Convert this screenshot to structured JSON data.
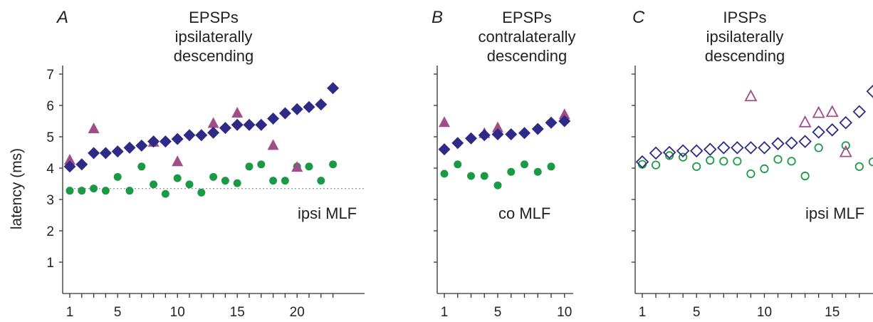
{
  "ylabel": "latency (ms)",
  "yticks": [
    "1",
    "2",
    "3",
    "4",
    "5",
    "6",
    "7"
  ],
  "colors": {
    "diamond": "#2e2a86",
    "circle": "#1a9a45",
    "triangle": "#a14d88",
    "reference_line": "#999999"
  },
  "panels": [
    {
      "letter": "A",
      "title": [
        "EPSPs",
        "ipsilaterally",
        "descending"
      ],
      "annotation": "ipsi MLF",
      "xticks": [
        "1",
        "5",
        "10",
        "15",
        "20"
      ]
    },
    {
      "letter": "B",
      "title": [
        "EPSPs",
        "contralaterally",
        "descending"
      ],
      "annotation": "co MLF",
      "xticks": [
        "1",
        "5",
        "10"
      ]
    },
    {
      "letter": "C",
      "title": [
        "IPSPs",
        "ipsilaterally",
        "descending"
      ],
      "annotation": "ipsi MLF",
      "xticks": [
        "1",
        "5",
        "10",
        "15"
      ]
    }
  ],
  "chart_data": [
    {
      "type": "scatter",
      "title": "EPSPs ipsilaterally descending",
      "ylabel": "latency (ms)",
      "ylim": [
        0,
        7
      ],
      "reference_line_y": 3.35,
      "series": [
        {
          "marker": "filled-diamond",
          "x": [
            1,
            2,
            3,
            4,
            5,
            6,
            7,
            8,
            9,
            10,
            11,
            12,
            13,
            14,
            15,
            16,
            17,
            18,
            19,
            20,
            21,
            22,
            23
          ],
          "y": [
            4.05,
            4.12,
            4.48,
            4.48,
            4.53,
            4.65,
            4.72,
            4.85,
            4.85,
            4.93,
            5.05,
            5.05,
            5.13,
            5.28,
            5.38,
            5.38,
            5.38,
            5.58,
            5.75,
            5.88,
            5.95,
            6.03,
            6.55
          ]
        },
        {
          "marker": "filled-circle",
          "x": [
            1,
            2,
            3,
            4,
            5,
            6,
            7,
            8,
            9,
            10,
            11,
            12,
            13,
            14,
            15,
            16,
            17,
            18,
            19,
            20,
            21,
            22,
            23
          ],
          "y": [
            3.28,
            3.28,
            3.35,
            3.28,
            3.72,
            3.28,
            4.05,
            3.48,
            3.18,
            3.68,
            3.48,
            3.22,
            3.72,
            3.6,
            3.52,
            4.05,
            4.12,
            3.6,
            3.6,
            4.05,
            4.05,
            3.6,
            4.12
          ]
        },
        {
          "marker": "filled-triangle",
          "x": [
            1,
            3,
            8,
            10,
            13,
            15,
            18,
            20
          ],
          "y": [
            4.25,
            5.25,
            4.82,
            4.2,
            5.42,
            5.75,
            4.72,
            4.02
          ]
        }
      ]
    },
    {
      "type": "scatter",
      "title": "EPSPs contralaterally descending",
      "ylim": [
        0,
        7
      ],
      "series": [
        {
          "marker": "filled-diamond",
          "x": [
            1,
            2,
            3,
            4,
            5,
            6,
            7,
            8,
            9,
            10
          ],
          "y": [
            4.6,
            4.8,
            4.95,
            5.05,
            5.08,
            5.08,
            5.12,
            5.25,
            5.45,
            5.5
          ]
        },
        {
          "marker": "filled-circle",
          "x": [
            1,
            2,
            3,
            4,
            5,
            6,
            7,
            8,
            9
          ],
          "y": [
            3.82,
            4.12,
            3.75,
            3.75,
            3.45,
            3.88,
            4.12,
            3.88,
            4.05
          ]
        },
        {
          "marker": "filled-triangle",
          "x": [
            1,
            4,
            5,
            10
          ],
          "y": [
            5.45,
            5.1,
            5.28,
            5.7
          ]
        }
      ]
    },
    {
      "type": "scatter",
      "title": "IPSPs ipsilaterally descending",
      "ylim": [
        0,
        7
      ],
      "series": [
        {
          "marker": "open-diamond",
          "x": [
            1,
            2,
            3,
            4,
            5,
            6,
            7,
            8,
            9,
            10,
            11,
            12,
            13,
            14,
            15,
            16,
            17,
            18
          ],
          "y": [
            4.2,
            4.48,
            4.5,
            4.55,
            4.55,
            4.6,
            4.65,
            4.65,
            4.65,
            4.65,
            4.78,
            4.8,
            4.85,
            5.15,
            5.22,
            5.45,
            5.8,
            6.45
          ]
        },
        {
          "marker": "open-circle",
          "x": [
            1,
            2,
            3,
            4,
            5,
            6,
            7,
            8,
            9,
            10,
            11,
            12,
            13,
            14,
            16,
            17,
            18
          ],
          "y": [
            4.12,
            4.1,
            4.4,
            4.35,
            4.05,
            4.25,
            4.22,
            4.22,
            3.82,
            3.98,
            4.28,
            4.22,
            3.75,
            4.65,
            4.72,
            4.05,
            4.2
          ]
        },
        {
          "marker": "open-triangle",
          "x": [
            9,
            13,
            14,
            15,
            16
          ],
          "y": [
            6.28,
            5.45,
            5.75,
            5.78,
            4.5
          ]
        }
      ]
    }
  ]
}
